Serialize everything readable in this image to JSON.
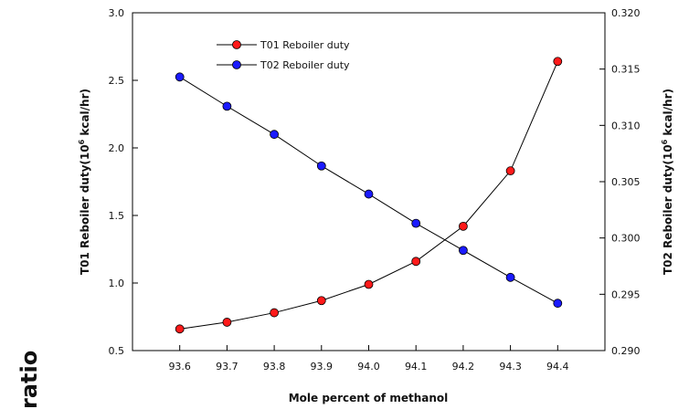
{
  "colors": {
    "series_1": "#ff1a1a",
    "series_2": "#1a1aff",
    "line": "#000000"
  },
  "side_text": "ratio",
  "chart_data": {
    "type": "line",
    "x": [
      93.6,
      93.7,
      93.8,
      93.9,
      94.0,
      94.1,
      94.2,
      94.3,
      94.4
    ],
    "x_ticks": [
      "93.6",
      "93.7",
      "93.8",
      "93.9",
      "94.0",
      "94.1",
      "94.2",
      "94.3",
      "94.4"
    ],
    "xlabel": "Mole percent of methanol",
    "xlim": [
      93.5,
      94.5
    ],
    "y_left": {
      "label_prefix": "T01 Reboiler duty(10",
      "label_exp": "6",
      "label_suffix": " kcal/hr)",
      "lim": [
        0.5,
        3.0
      ],
      "ticks": [
        "0.5",
        "1.0",
        "1.5",
        "2.0",
        "2.5",
        "3.0"
      ]
    },
    "y_right": {
      "label_prefix": "T02 Reboiler duty(10",
      "label_exp": "6",
      "label_suffix": " kcal/hr)",
      "lim": [
        0.29,
        0.32
      ],
      "ticks": [
        "0.290",
        "0.295",
        "0.300",
        "0.305",
        "0.310",
        "0.315",
        "0.320"
      ]
    },
    "series": [
      {
        "name": "T01 Reboiler duty",
        "axis": "left",
        "color": "#ff1a1a",
        "values": [
          0.66,
          0.71,
          0.78,
          0.87,
          0.99,
          1.16,
          1.42,
          1.83,
          2.64
        ]
      },
      {
        "name": "T02 Reboiler duty",
        "axis": "right",
        "color": "#1a1aff",
        "values": [
          0.3143,
          0.3117,
          0.3092,
          0.3064,
          0.3039,
          0.3013,
          0.2989,
          0.2965,
          0.2942
        ]
      }
    ],
    "legend": "top-left",
    "grid": false
  }
}
